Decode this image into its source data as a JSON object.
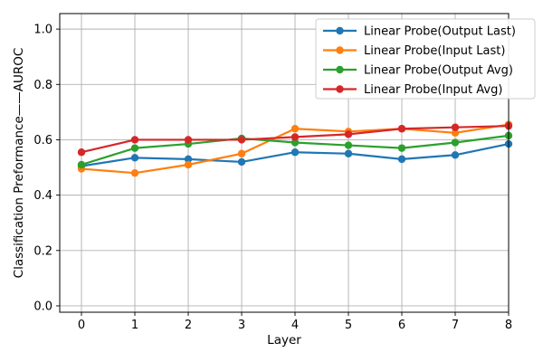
{
  "chart_data": {
    "type": "line",
    "title": "",
    "xlabel": "Layer",
    "ylabel": "Classification Preformance——AUROC",
    "x": [
      0,
      1,
      2,
      3,
      4,
      5,
      6,
      7,
      8
    ],
    "xtick_labels": [
      "0",
      "1",
      "2",
      "3",
      "4",
      "5",
      "6",
      "7",
      "8"
    ],
    "yticks": [
      0.0,
      0.2,
      0.4,
      0.6,
      0.8,
      1.0
    ],
    "ytick_labels": [
      "0.0",
      "0.2",
      "0.4",
      "0.6",
      "0.8",
      "1.0"
    ],
    "xlim": [
      -0.407,
      8.0
    ],
    "ylim": [
      -0.023,
      1.056
    ],
    "grid": true,
    "legend_position": "upper right",
    "series": [
      {
        "name": "Linear Probe(Output Last)",
        "color": "#1f77b4",
        "values": [
          0.505,
          0.535,
          0.53,
          0.52,
          0.555,
          0.55,
          0.53,
          0.545,
          0.585
        ]
      },
      {
        "name": "Linear Probe(Input Last)",
        "color": "#ff7f0e",
        "values": [
          0.495,
          0.48,
          0.51,
          0.55,
          0.64,
          0.63,
          0.64,
          0.625,
          0.655
        ]
      },
      {
        "name": "Linear Probe(Output Avg)",
        "color": "#2ca02c",
        "values": [
          0.51,
          0.57,
          0.585,
          0.605,
          0.59,
          0.58,
          0.57,
          0.59,
          0.615
        ]
      },
      {
        "name": "Linear Probe(Input Avg)",
        "color": "#d62728",
        "values": [
          0.555,
          0.6,
          0.6,
          0.6,
          0.61,
          0.62,
          0.64,
          0.645,
          0.65
        ]
      }
    ],
    "colors": {
      "grid": "#b0b0b0",
      "spine": "#000000",
      "background": "#ffffff",
      "legend_border": "#cccccc",
      "text": "#000000"
    }
  }
}
